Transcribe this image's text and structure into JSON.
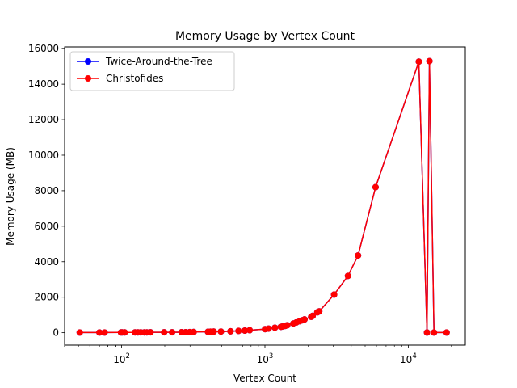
{
  "chart_data": {
    "type": "line",
    "title": "Memory Usage by Vertex Count",
    "xlabel": "Vertex Count",
    "ylabel": "Memory Usage (MB)",
    "xscale": "log",
    "xlim": [
      40,
      25000
    ],
    "ylim": [
      -700,
      16100
    ],
    "x_ticks": [
      {
        "value": 100,
        "base": "10",
        "exp": "2"
      },
      {
        "value": 1000,
        "base": "10",
        "exp": "3"
      },
      {
        "value": 10000,
        "base": "10",
        "exp": "4"
      }
    ],
    "y_ticks": [
      0,
      2000,
      4000,
      6000,
      8000,
      10000,
      12000,
      14000,
      16000
    ],
    "legend": "top-left",
    "grid": false,
    "x": [
      51,
      70,
      76,
      99,
      101,
      105,
      124,
      130,
      136,
      144,
      150,
      159,
      198,
      225,
      262,
      280,
      299,
      318,
      400,
      417,
      439,
      493,
      575,
      654,
      724,
      783,
      1002,
      1060,
      1173,
      1291,
      1323,
      1379,
      1400,
      1432,
      1577,
      1655,
      1748,
      1817,
      1889,
      2103,
      2152,
      2319,
      2392,
      3038,
      3795,
      4461,
      5915,
      11849,
      13509,
      14051,
      15112,
      18512
    ],
    "series": [
      {
        "name": "Twice-Around-the-Tree",
        "color": "#0000ff",
        "values": [
          10,
          12,
          12,
          15,
          15,
          15,
          18,
          20,
          20,
          20,
          20,
          22,
          25,
          25,
          30,
          30,
          35,
          40,
          50,
          55,
          60,
          65,
          80,
          100,
          120,
          140,
          200,
          230,
          280,
          330,
          350,
          380,
          400,
          420,
          520,
          580,
          650,
          700,
          750,
          900,
          950,
          1150,
          1200,
          2150,
          3200,
          4350,
          8200,
          15270,
          10,
          15300,
          10,
          10
        ]
      },
      {
        "name": "Christofides",
        "color": "#ff0000",
        "values": [
          10,
          12,
          12,
          15,
          15,
          15,
          18,
          20,
          20,
          20,
          20,
          22,
          25,
          25,
          30,
          30,
          35,
          40,
          50,
          55,
          60,
          65,
          80,
          100,
          120,
          140,
          200,
          230,
          280,
          330,
          350,
          380,
          400,
          420,
          520,
          580,
          650,
          700,
          750,
          900,
          950,
          1150,
          1200,
          2150,
          3200,
          4350,
          8200,
          15270,
          10,
          15300,
          10,
          10
        ]
      }
    ]
  }
}
